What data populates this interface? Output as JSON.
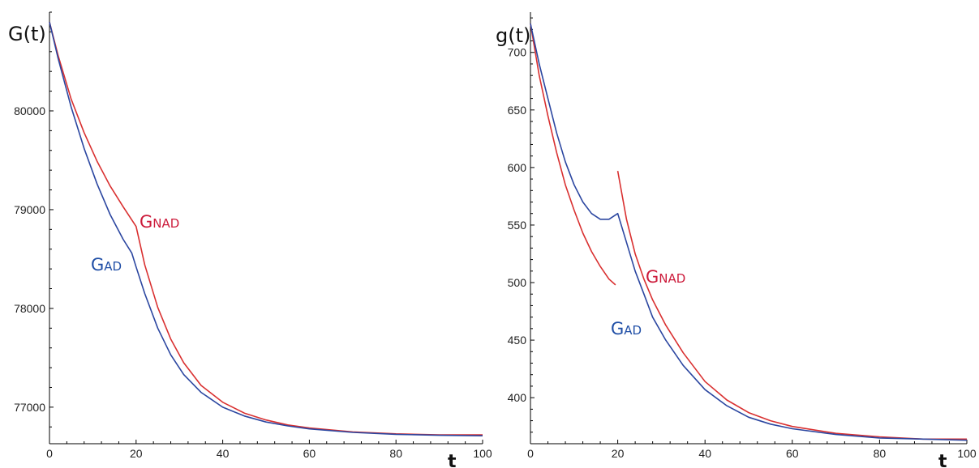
{
  "chart_data": [
    {
      "type": "line",
      "ylabel": "G(t)",
      "xlabel": "t",
      "xlim": [
        0,
        100
      ],
      "ylim": [
        76630,
        81000
      ],
      "x_ticks": [
        0,
        20,
        40,
        60,
        80,
        100
      ],
      "y_ticks": [
        77000,
        78000,
        79000,
        80000
      ],
      "grid": false,
      "series": [
        {
          "name": "GNAD",
          "name_big": "G",
          "name_small": "NAD",
          "color": "#d93030",
          "label_color": "#cc1a3a",
          "points": [
            [
              0,
              80900
            ],
            [
              2,
              80560
            ],
            [
              5,
              80120
            ],
            [
              8,
              79780
            ],
            [
              11,
              79490
            ],
            [
              14,
              79240
            ],
            [
              17,
              79030
            ],
            [
              20,
              78830
            ],
            [
              22,
              78440
            ],
            [
              25,
              78010
            ],
            [
              28,
              77690
            ],
            [
              31,
              77450
            ],
            [
              35,
              77220
            ],
            [
              40,
              77050
            ],
            [
              45,
              76940
            ],
            [
              50,
              76870
            ],
            [
              55,
              76820
            ],
            [
              60,
              76790
            ],
            [
              70,
              76750
            ],
            [
              80,
              76730
            ],
            [
              90,
              76720
            ],
            [
              100,
              76720
            ]
          ]
        },
        {
          "name": "GAD",
          "name_big": "G",
          "name_small": "AD",
          "color": "#2b46a0",
          "label_color": "#1f4ea6",
          "points": [
            [
              0,
              80900
            ],
            [
              2,
              80530
            ],
            [
              5,
              80040
            ],
            [
              8,
              79620
            ],
            [
              11,
              79260
            ],
            [
              14,
              78950
            ],
            [
              17,
              78700
            ],
            [
              19,
              78560
            ],
            [
              20,
              78420
            ],
            [
              22,
              78150
            ],
            [
              25,
              77800
            ],
            [
              28,
              77530
            ],
            [
              31,
              77330
            ],
            [
              35,
              77150
            ],
            [
              40,
              77000
            ],
            [
              45,
              76910
            ],
            [
              50,
              76850
            ],
            [
              55,
              76810
            ],
            [
              60,
              76780
            ],
            [
              70,
              76745
            ],
            [
              80,
              76725
            ],
            [
              90,
              76715
            ],
            [
              100,
              76710
            ]
          ]
        }
      ]
    },
    {
      "type": "line",
      "ylabel": "g(t)",
      "xlabel": "t",
      "xlim": [
        0,
        100
      ],
      "ylim": [
        360,
        735
      ],
      "x_ticks": [
        0,
        20,
        40,
        60,
        80,
        100
      ],
      "y_ticks": [
        400,
        450,
        500,
        550,
        600,
        650,
        700
      ],
      "grid": false,
      "series": [
        {
          "name": "GNAD",
          "name_big": "G",
          "name_small": "NAD",
          "color": "#d93030",
          "label_color": "#cc1a3a",
          "segments": [
            [
              [
                0,
                725
              ],
              [
                2,
                680
              ],
              [
                4,
                645
              ],
              [
                6,
                613
              ],
              [
                8,
                585
              ],
              [
                10,
                563
              ],
              [
                12,
                543
              ],
              [
                14,
                527
              ],
              [
                16,
                514
              ],
              [
                18,
                503
              ],
              [
                19.5,
                498
              ]
            ],
            [
              [
                20,
                597
              ],
              [
                22,
                555
              ],
              [
                24,
                525
              ],
              [
                26,
                503
              ],
              [
                28,
                485
              ],
              [
                31,
                463
              ],
              [
                35,
                439
              ],
              [
                40,
                414
              ],
              [
                45,
                398
              ],
              [
                50,
                387
              ],
              [
                55,
                380
              ],
              [
                60,
                375
              ],
              [
                70,
                369
              ],
              [
                80,
                366
              ],
              [
                90,
                364
              ],
              [
                100,
                364
              ]
            ]
          ]
        },
        {
          "name": "GAD",
          "name_big": "G",
          "name_small": "AD",
          "color": "#2b46a0",
          "label_color": "#1f4ea6",
          "segments": [
            [
              [
                0,
                725
              ],
              [
                2,
                690
              ],
              [
                4,
                660
              ],
              [
                6,
                630
              ],
              [
                8,
                605
              ],
              [
                10,
                585
              ],
              [
                12,
                570
              ],
              [
                14,
                560
              ],
              [
                16,
                555
              ],
              [
                18,
                555
              ],
              [
                20,
                560
              ],
              [
                22,
                535
              ],
              [
                24,
                510
              ],
              [
                26,
                490
              ],
              [
                28,
                470
              ],
              [
                31,
                450
              ],
              [
                35,
                428
              ],
              [
                40,
                407
              ],
              [
                45,
                393
              ],
              [
                50,
                383
              ],
              [
                55,
                377
              ],
              [
                60,
                373
              ],
              [
                70,
                368
              ],
              [
                80,
                365
              ],
              [
                90,
                364
              ],
              [
                100,
                363
              ]
            ]
          ]
        }
      ]
    }
  ]
}
